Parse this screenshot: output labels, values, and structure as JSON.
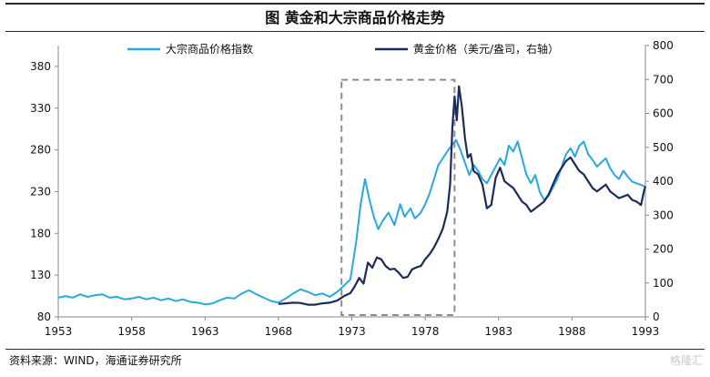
{
  "title": "图 黄金和大宗商品价格走势",
  "source": "资料来源：WIND，海通证券研究所",
  "watermark": "格隆汇",
  "chart_data": {
    "type": "line",
    "title": "图 黄金和大宗商品价格走势",
    "x_ticks": [
      "1953",
      "1958",
      "1963",
      "1968",
      "1973",
      "1978",
      "1983",
      "1988",
      "1993"
    ],
    "xlim": [
      1953,
      1993
    ],
    "y_left": {
      "ticks": [
        80,
        130,
        180,
        230,
        280,
        330,
        380
      ],
      "lim": [
        80,
        405
      ]
    },
    "y_right": {
      "ticks": [
        0,
        100,
        200,
        300,
        400,
        500,
        600,
        700,
        800
      ],
      "lim": [
        0,
        800
      ]
    },
    "legend_position": "top",
    "highlight_box": {
      "x": [
        1972.3,
        1980.0
      ],
      "y_left": [
        80,
        364
      ]
    },
    "series": [
      {
        "name": "大宗商品价格指数",
        "axis": "left",
        "color": "#29a8e0",
        "x": [
          1953.0,
          1953.5,
          1954.0,
          1954.5,
          1955.0,
          1955.5,
          1956.0,
          1956.5,
          1957.0,
          1957.5,
          1958.0,
          1958.5,
          1959.0,
          1959.5,
          1960.0,
          1960.5,
          1961.0,
          1961.5,
          1962.0,
          1962.5,
          1963.0,
          1963.5,
          1964.0,
          1964.5,
          1965.0,
          1965.5,
          1966.0,
          1966.5,
          1967.0,
          1967.5,
          1968.0,
          1968.5,
          1969.0,
          1969.5,
          1970.0,
          1970.5,
          1971.0,
          1971.5,
          1972.0,
          1972.5,
          1972.9,
          1973.3,
          1973.6,
          1973.9,
          1974.2,
          1974.5,
          1974.8,
          1975.1,
          1975.5,
          1975.9,
          1976.3,
          1976.6,
          1977.0,
          1977.3,
          1977.7,
          1978.0,
          1978.3,
          1978.6,
          1978.9,
          1979.2,
          1979.5,
          1979.8,
          1980.1,
          1980.4,
          1980.7,
          1981.0,
          1981.3,
          1981.6,
          1981.9,
          1982.2,
          1982.5,
          1982.8,
          1983.1,
          1983.4,
          1983.7,
          1984.0,
          1984.3,
          1984.6,
          1984.9,
          1985.2,
          1985.5,
          1985.8,
          1986.1,
          1986.4,
          1986.7,
          1987.0,
          1987.3,
          1987.6,
          1987.9,
          1988.2,
          1988.5,
          1988.8,
          1989.1,
          1989.4,
          1989.7,
          1990.0,
          1990.3,
          1990.6,
          1990.9,
          1991.2,
          1991.5,
          1991.8,
          1992.1,
          1992.4,
          1992.7,
          1993.0
        ],
        "values": [
          103,
          105,
          103,
          107,
          104,
          106,
          107,
          103,
          104,
          101,
          102,
          104,
          101,
          103,
          100,
          102,
          99,
          101,
          98,
          97,
          95,
          96,
          100,
          103,
          102,
          108,
          112,
          107,
          103,
          99,
          97,
          102,
          108,
          113,
          110,
          106,
          108,
          104,
          110,
          118,
          125,
          170,
          215,
          245,
          220,
          200,
          185,
          195,
          205,
          190,
          215,
          200,
          210,
          198,
          205,
          215,
          228,
          245,
          262,
          270,
          278,
          285,
          292,
          280,
          265,
          250,
          262,
          255,
          245,
          240,
          250,
          260,
          270,
          262,
          285,
          278,
          290,
          270,
          250,
          240,
          250,
          230,
          220,
          225,
          235,
          245,
          260,
          275,
          282,
          272,
          285,
          290,
          275,
          268,
          260,
          265,
          270,
          258,
          250,
          245,
          255,
          248,
          242,
          240,
          238,
          236
        ]
      },
      {
        "name": "黄金价格（美元/盎司，右轴）",
        "axis": "right",
        "color": "#1c2b5a",
        "x": [
          1968.0,
          1968.5,
          1969.0,
          1969.5,
          1970.0,
          1970.5,
          1971.0,
          1971.5,
          1972.0,
          1972.5,
          1972.9,
          1973.2,
          1973.5,
          1973.8,
          1974.1,
          1974.4,
          1974.7,
          1975.0,
          1975.3,
          1975.6,
          1975.9,
          1976.2,
          1976.5,
          1976.8,
          1977.1,
          1977.4,
          1977.7,
          1978.0,
          1978.3,
          1978.6,
          1978.9,
          1979.2,
          1979.5,
          1979.7,
          1979.85,
          1980.0,
          1980.15,
          1980.3,
          1980.5,
          1980.7,
          1980.9,
          1981.1,
          1981.3,
          1981.6,
          1981.9,
          1982.2,
          1982.5,
          1982.8,
          1983.1,
          1983.4,
          1983.7,
          1984.0,
          1984.3,
          1984.6,
          1984.9,
          1985.2,
          1985.5,
          1985.8,
          1986.1,
          1986.4,
          1986.7,
          1987.0,
          1987.3,
          1987.6,
          1987.9,
          1988.2,
          1988.5,
          1988.8,
          1989.1,
          1989.4,
          1989.7,
          1990.0,
          1990.3,
          1990.6,
          1990.9,
          1991.2,
          1991.5,
          1991.8,
          1992.1,
          1992.4,
          1992.7,
          1992.9,
          1993.0
        ],
        "values": [
          38,
          40,
          42,
          41,
          36,
          36,
          40,
          42,
          48,
          62,
          70,
          90,
          115,
          98,
          160,
          145,
          175,
          170,
          150,
          140,
          142,
          130,
          115,
          118,
          140,
          146,
          150,
          170,
          185,
          205,
          230,
          260,
          310,
          390,
          560,
          650,
          580,
          680,
          620,
          530,
          470,
          480,
          430,
          420,
          390,
          320,
          330,
          410,
          440,
          400,
          390,
          380,
          360,
          340,
          330,
          310,
          320,
          330,
          340,
          360,
          390,
          420,
          440,
          460,
          470,
          450,
          430,
          420,
          400,
          380,
          370,
          380,
          390,
          370,
          360,
          350,
          355,
          360,
          345,
          340,
          330,
          370,
          385
        ]
      }
    ]
  }
}
